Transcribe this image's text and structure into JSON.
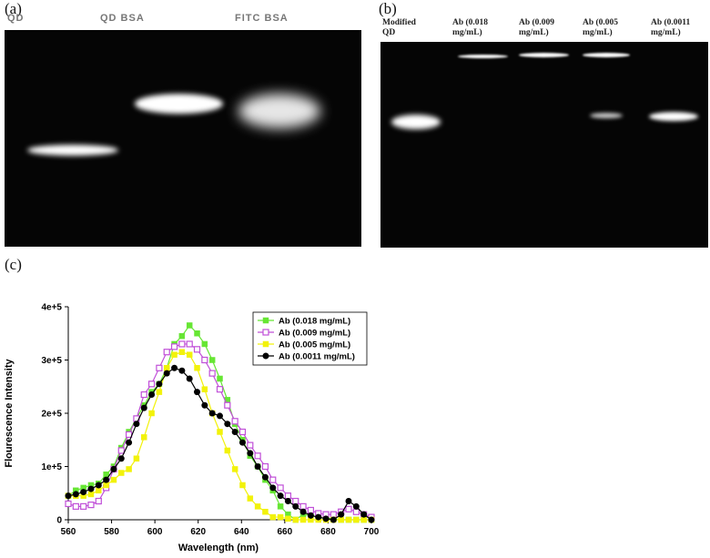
{
  "panels": [
    {
      "label": "(a)",
      "lanes": [
        "QD",
        "QD BSA",
        "FITC BSA"
      ]
    },
    {
      "label": "(b)",
      "lanes": [
        "Modified QD",
        "Ab (0.018 mg/mL)",
        "Ab (0.009 mg/mL)",
        "Ab (0.005 mg/mL)",
        "Ab (0.0011 mg/mL)"
      ]
    }
  ],
  "chart_data": {
    "type": "line",
    "panel_label": "(c)",
    "x_label": "Wavelength (nm)",
    "y_label": "Flourescence Intensity",
    "x": [
      560,
      563.5,
      567,
      570.5,
      574,
      577.5,
      581,
      584.5,
      588,
      591.5,
      595,
      598.5,
      602,
      605.5,
      609,
      612.5,
      616,
      619.5,
      623,
      626.5,
      630,
      633.5,
      637,
      640.5,
      644,
      647.5,
      651,
      654.5,
      658,
      661.5,
      665,
      668.5,
      672,
      675.5,
      679,
      682.5,
      686,
      689.5,
      693,
      696.5,
      700
    ],
    "xlim": [
      560,
      700
    ],
    "xticks": [
      560,
      580,
      600,
      620,
      640,
      660,
      680,
      700
    ],
    "ylim": [
      0,
      400000
    ],
    "yticks": [
      0,
      {
        "value": 100000,
        "label": "1e+5"
      },
      {
        "value": 200000,
        "label": "2e+5"
      },
      {
        "value": 300000,
        "label": "3e+5"
      },
      {
        "value": 400000,
        "label": "4e+5"
      }
    ],
    "grid": false,
    "legend": "upper right",
    "series": [
      {
        "name": "Ab (0.018 mg/mL)",
        "color": "#66e633",
        "marker": "square-filled",
        "values": [
          45000,
          55000,
          60000,
          65000,
          68000,
          85000,
          100000,
          135000,
          165000,
          190000,
          215000,
          240000,
          255000,
          285000,
          330000,
          345000,
          365000,
          350000,
          330000,
          300000,
          265000,
          225000,
          180000,
          150000,
          120000,
          100000,
          75000,
          55000,
          25000,
          10000,
          0,
          10000,
          8000,
          5000,
          3000,
          2000,
          0,
          0,
          0,
          0,
          0
        ]
      },
      {
        "name": "Ab (0.009 mg/mL)",
        "color": "#c04fd8",
        "marker": "square-open",
        "values": [
          30000,
          25000,
          25000,
          28000,
          35000,
          60000,
          95000,
          130000,
          160000,
          190000,
          235000,
          255000,
          285000,
          315000,
          325000,
          330000,
          330000,
          320000,
          300000,
          275000,
          245000,
          215000,
          185000,
          165000,
          140000,
          120000,
          100000,
          75000,
          60000,
          45000,
          35000,
          25000,
          18000,
          12000,
          10000,
          10000,
          15000,
          20000,
          15000,
          10000,
          5000
        ]
      },
      {
        "name": "Ab (0.005 mg/mL)",
        "color": "#f2f20a",
        "marker": "square-filled",
        "values": [
          45000,
          45000,
          45000,
          48000,
          55000,
          65000,
          75000,
          88000,
          95000,
          115000,
          155000,
          200000,
          240000,
          285000,
          310000,
          315000,
          310000,
          285000,
          245000,
          200000,
          165000,
          130000,
          95000,
          65000,
          40000,
          25000,
          15000,
          5000,
          5000,
          2000,
          0,
          0,
          0,
          0,
          0,
          0,
          0,
          0,
          0,
          0,
          0
        ]
      },
      {
        "name": "Ab (0.0011 mg/mL)",
        "color": "#000000",
        "marker": "circle-filled",
        "values": [
          45000,
          48000,
          52000,
          58000,
          65000,
          75000,
          95000,
          115000,
          145000,
          180000,
          210000,
          235000,
          255000,
          275000,
          285000,
          280000,
          265000,
          240000,
          215000,
          200000,
          195000,
          180000,
          165000,
          145000,
          125000,
          100000,
          80000,
          60000,
          45000,
          35000,
          25000,
          15000,
          8000,
          5000,
          2000,
          0,
          10000,
          35000,
          25000,
          10000,
          0
        ]
      }
    ]
  }
}
